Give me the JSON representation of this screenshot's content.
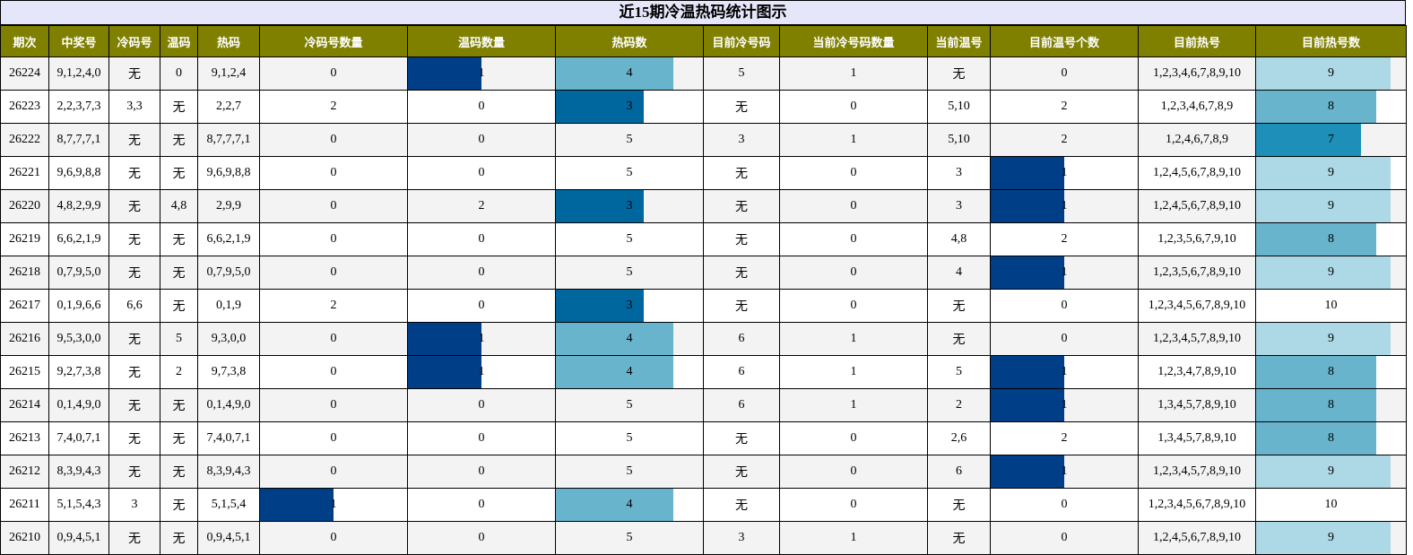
{
  "title": "近15期冷温热码统计图示",
  "headers": [
    "期次",
    "中奖号",
    "冷码号",
    "温码",
    "热码",
    "冷码号数量",
    "温码数量",
    "热码数",
    "目前冷号码",
    "当前冷号码数量",
    "当前温号",
    "目前温号个数",
    "目前热号",
    "目前热号数"
  ],
  "colors": {
    "header_bg": "#808000",
    "title_bg": "#e6e6fa",
    "count_1": "#003f87",
    "count_3": "#00679e",
    "count_4": "#68b4cc",
    "count_7": "#1d8fb8",
    "count_8": "#68b4cc",
    "count_9": "#add8e6"
  },
  "rows": [
    [
      "26224",
      "9,1,2,4,0",
      "无",
      "0",
      "9,1,2,4",
      "0",
      "1",
      "4",
      "5",
      "1",
      "无",
      "0",
      "1,2,3,4,6,7,8,9,10",
      "9"
    ],
    [
      "26223",
      "2,2,3,7,3",
      "3,3",
      "无",
      "2,2,7",
      "2",
      "0",
      "3",
      "无",
      "0",
      "5,10",
      "2",
      "1,2,3,4,6,7,8,9",
      "8"
    ],
    [
      "26222",
      "8,7,7,7,1",
      "无",
      "无",
      "8,7,7,7,1",
      "0",
      "0",
      "5",
      "3",
      "1",
      "5,10",
      "2",
      "1,2,4,6,7,8,9",
      "7"
    ],
    [
      "26221",
      "9,6,9,8,8",
      "无",
      "无",
      "9,6,9,8,8",
      "0",
      "0",
      "5",
      "无",
      "0",
      "3",
      "1",
      "1,2,4,5,6,7,8,9,10",
      "9"
    ],
    [
      "26220",
      "4,8,2,9,9",
      "无",
      "4,8",
      "2,9,9",
      "0",
      "2",
      "3",
      "无",
      "0",
      "3",
      "1",
      "1,2,4,5,6,7,8,9,10",
      "9"
    ],
    [
      "26219",
      "6,6,2,1,9",
      "无",
      "无",
      "6,6,2,1,9",
      "0",
      "0",
      "5",
      "无",
      "0",
      "4,8",
      "2",
      "1,2,3,5,6,7,9,10",
      "8"
    ],
    [
      "26218",
      "0,7,9,5,0",
      "无",
      "无",
      "0,7,9,5,0",
      "0",
      "0",
      "5",
      "无",
      "0",
      "4",
      "1",
      "1,2,3,5,6,7,8,9,10",
      "9"
    ],
    [
      "26217",
      "0,1,9,6,6",
      "6,6",
      "无",
      "0,1,9",
      "2",
      "0",
      "3",
      "无",
      "0",
      "无",
      "0",
      "1,2,3,4,5,6,7,8,9,10",
      "10"
    ],
    [
      "26216",
      "9,5,3,0,0",
      "无",
      "5",
      "9,3,0,0",
      "0",
      "1",
      "4",
      "6",
      "1",
      "无",
      "0",
      "1,2,3,4,5,7,8,9,10",
      "9"
    ],
    [
      "26215",
      "9,2,7,3,8",
      "无",
      "2",
      "9,7,3,8",
      "0",
      "1",
      "4",
      "6",
      "1",
      "5",
      "1",
      "1,2,3,4,7,8,9,10",
      "8"
    ],
    [
      "26214",
      "0,1,4,9,0",
      "无",
      "无",
      "0,1,4,9,0",
      "0",
      "0",
      "5",
      "6",
      "1",
      "2",
      "1",
      "1,3,4,5,7,8,9,10",
      "8"
    ],
    [
      "26213",
      "7,4,0,7,1",
      "无",
      "无",
      "7,4,0,7,1",
      "0",
      "0",
      "5",
      "无",
      "0",
      "2,6",
      "2",
      "1,3,4,5,7,8,9,10",
      "8"
    ],
    [
      "26212",
      "8,3,9,4,3",
      "无",
      "无",
      "8,3,9,4,3",
      "0",
      "0",
      "5",
      "无",
      "0",
      "6",
      "1",
      "1,2,3,4,5,7,8,9,10",
      "9"
    ],
    [
      "26211",
      "5,1,5,4,3",
      "3",
      "无",
      "5,1,5,4",
      "1",
      "0",
      "4",
      "无",
      "0",
      "无",
      "0",
      "1,2,3,4,5,6,7,8,9,10",
      "10"
    ],
    [
      "26210",
      "0,9,4,5,1",
      "无",
      "无",
      "0,9,4,5,1",
      "0",
      "0",
      "5",
      "3",
      "1",
      "无",
      "0",
      "1,2,4,5,6,7,8,9,10",
      "9"
    ]
  ]
}
